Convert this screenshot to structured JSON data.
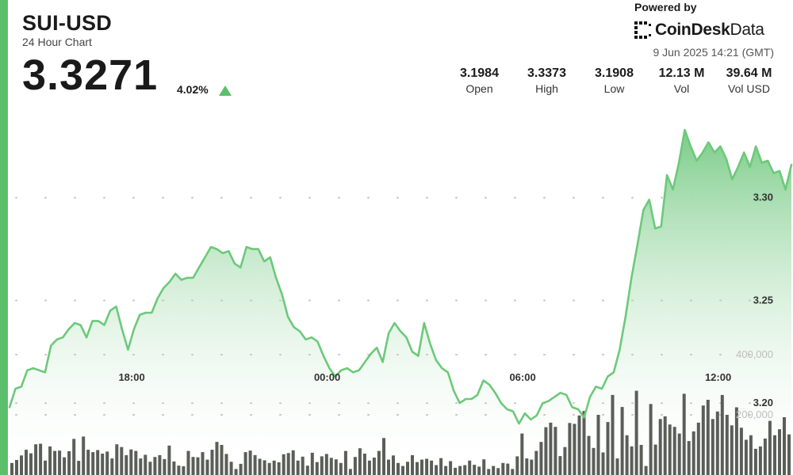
{
  "header": {
    "pair": "SUI-USD",
    "subtitle": "24 Hour Chart",
    "price": "3.3271",
    "change": "4.02%"
  },
  "brand": {
    "powered_by": "Powered by",
    "name_bold": "CoinDesk",
    "name_light": "Data"
  },
  "timestamp": "9 Jun 2025 14:21 (GMT)",
  "stats": [
    {
      "value": "3.1984",
      "label": "Open"
    },
    {
      "value": "3.3373",
      "label": "High"
    },
    {
      "value": "3.1908",
      "label": "Low"
    },
    {
      "value": "12.13 M",
      "label": "Vol"
    },
    {
      "value": "39.64 M",
      "label": "Vol USD"
    }
  ],
  "colors": {
    "accent": "#5cbf6c",
    "line": "#6cc97a",
    "fill_top": "#74c982",
    "fill_bottom": "#ffffff",
    "volume_bar": "#5b5e58",
    "grid": "#c4c4c4"
  },
  "icons": {
    "change_direction": "up-triangle-icon",
    "brand_logo": "coindesk-logo-icon"
  },
  "chart_data": {
    "type": "line",
    "x_tick_labels": [
      "18:00",
      "00:00",
      "06:00",
      "12:00"
    ],
    "x_tick_hours": [
      3.75,
      9.75,
      15.75,
      21.75
    ],
    "price_ticks": [
      "3.20",
      "3.25",
      "3.30"
    ],
    "price_tick_values": [
      3.2,
      3.25,
      3.3
    ],
    "price_range": [
      3.165,
      3.35
    ],
    "volume_ticks": [
      "200,000",
      "400,000"
    ],
    "volume_tick_values": [
      200000,
      400000
    ],
    "volume_range": [
      0,
      500000
    ],
    "price": [
      3.198,
      3.207,
      3.208,
      3.216,
      3.217,
      3.216,
      3.215,
      3.228,
      3.231,
      3.232,
      3.236,
      3.239,
      3.238,
      3.232,
      3.24,
      3.24,
      3.238,
      3.245,
      3.247,
      3.236,
      3.226,
      3.236,
      3.243,
      3.244,
      3.244,
      3.251,
      3.256,
      3.259,
      3.263,
      3.26,
      3.261,
      3.261,
      3.266,
      3.271,
      3.276,
      3.275,
      3.273,
      3.274,
      3.268,
      3.266,
      3.276,
      3.275,
      3.275,
      3.269,
      3.271,
      3.261,
      3.253,
      3.242,
      3.237,
      3.235,
      3.231,
      3.232,
      3.23,
      3.223,
      3.217,
      3.213,
      3.216,
      3.217,
      3.215,
      3.216,
      3.22,
      3.224,
      3.227,
      3.22,
      3.234,
      3.239,
      3.235,
      3.232,
      3.225,
      3.223,
      3.239,
      3.229,
      3.221,
      3.217,
      3.215,
      3.206,
      3.2,
      3.202,
      3.202,
      3.204,
      3.211,
      3.209,
      3.205,
      3.2,
      3.197,
      3.196,
      3.19,
      3.195,
      3.192,
      3.194,
      3.2,
      3.201,
      3.203,
      3.205,
      3.204,
      3.198,
      3.197,
      3.193,
      3.203,
      3.208,
      3.207,
      3.213,
      3.215,
      3.226,
      3.242,
      3.261,
      3.277,
      3.294,
      3.299,
      3.285,
      3.286,
      3.311,
      3.304,
      3.317,
      3.333,
      3.325,
      3.318,
      3.322,
      3.327,
      3.322,
      3.325,
      3.319,
      3.309,
      3.315,
      3.322,
      3.315,
      3.325,
      3.317,
      3.318,
      3.312,
      3.313,
      3.304,
      3.316
    ],
    "volume": [
      40,
      50,
      65,
      84,
      72,
      102,
      104,
      48,
      95,
      80,
      81,
      59,
      79,
      120,
      47,
      128,
      84,
      76,
      83,
      71,
      78,
      55,
      102,
      93,
      66,
      85,
      80,
      55,
      67,
      44,
      60,
      66,
      53,
      98,
      45,
      31,
      29,
      80,
      60,
      59,
      76,
      51,
      84,
      110,
      100,
      70,
      44,
      20,
      37,
      76,
      81,
      66,
      54,
      49,
      40,
      48,
      42,
      69,
      73,
      82,
      48,
      61,
      31,
      74,
      43,
      62,
      70,
      57,
      52,
      40,
      80,
      20,
      60,
      89,
      71,
      48,
      58,
      80,
      123,
      51,
      65,
      40,
      30,
      44,
      66,
      43,
      51,
      54,
      48,
      33,
      56,
      30,
      46,
      24,
      30,
      33,
      48,
      34,
      28,
      52,
      20,
      30,
      23,
      40,
      38,
      20,
      62,
      138,
      55,
      51,
      80,
      110,
      159,
      174,
      160,
      63,
      93,
      173,
      170,
      198,
      213,
      130,
      90,
      200,
      75,
      176,
      266,
      55,
      226,
      132,
      95,
      280,
      100,
      30,
      236,
      101,
      186,
      195,
      168,
      160,
      138,
      270,
      113,
      145,
      174,
      231,
      250,
      186,
      211,
      266,
      200,
      165,
      225,
      157,
      117,
      132,
      87,
      95,
      121,
      180,
      132,
      152,
      192,
      135
    ]
  }
}
